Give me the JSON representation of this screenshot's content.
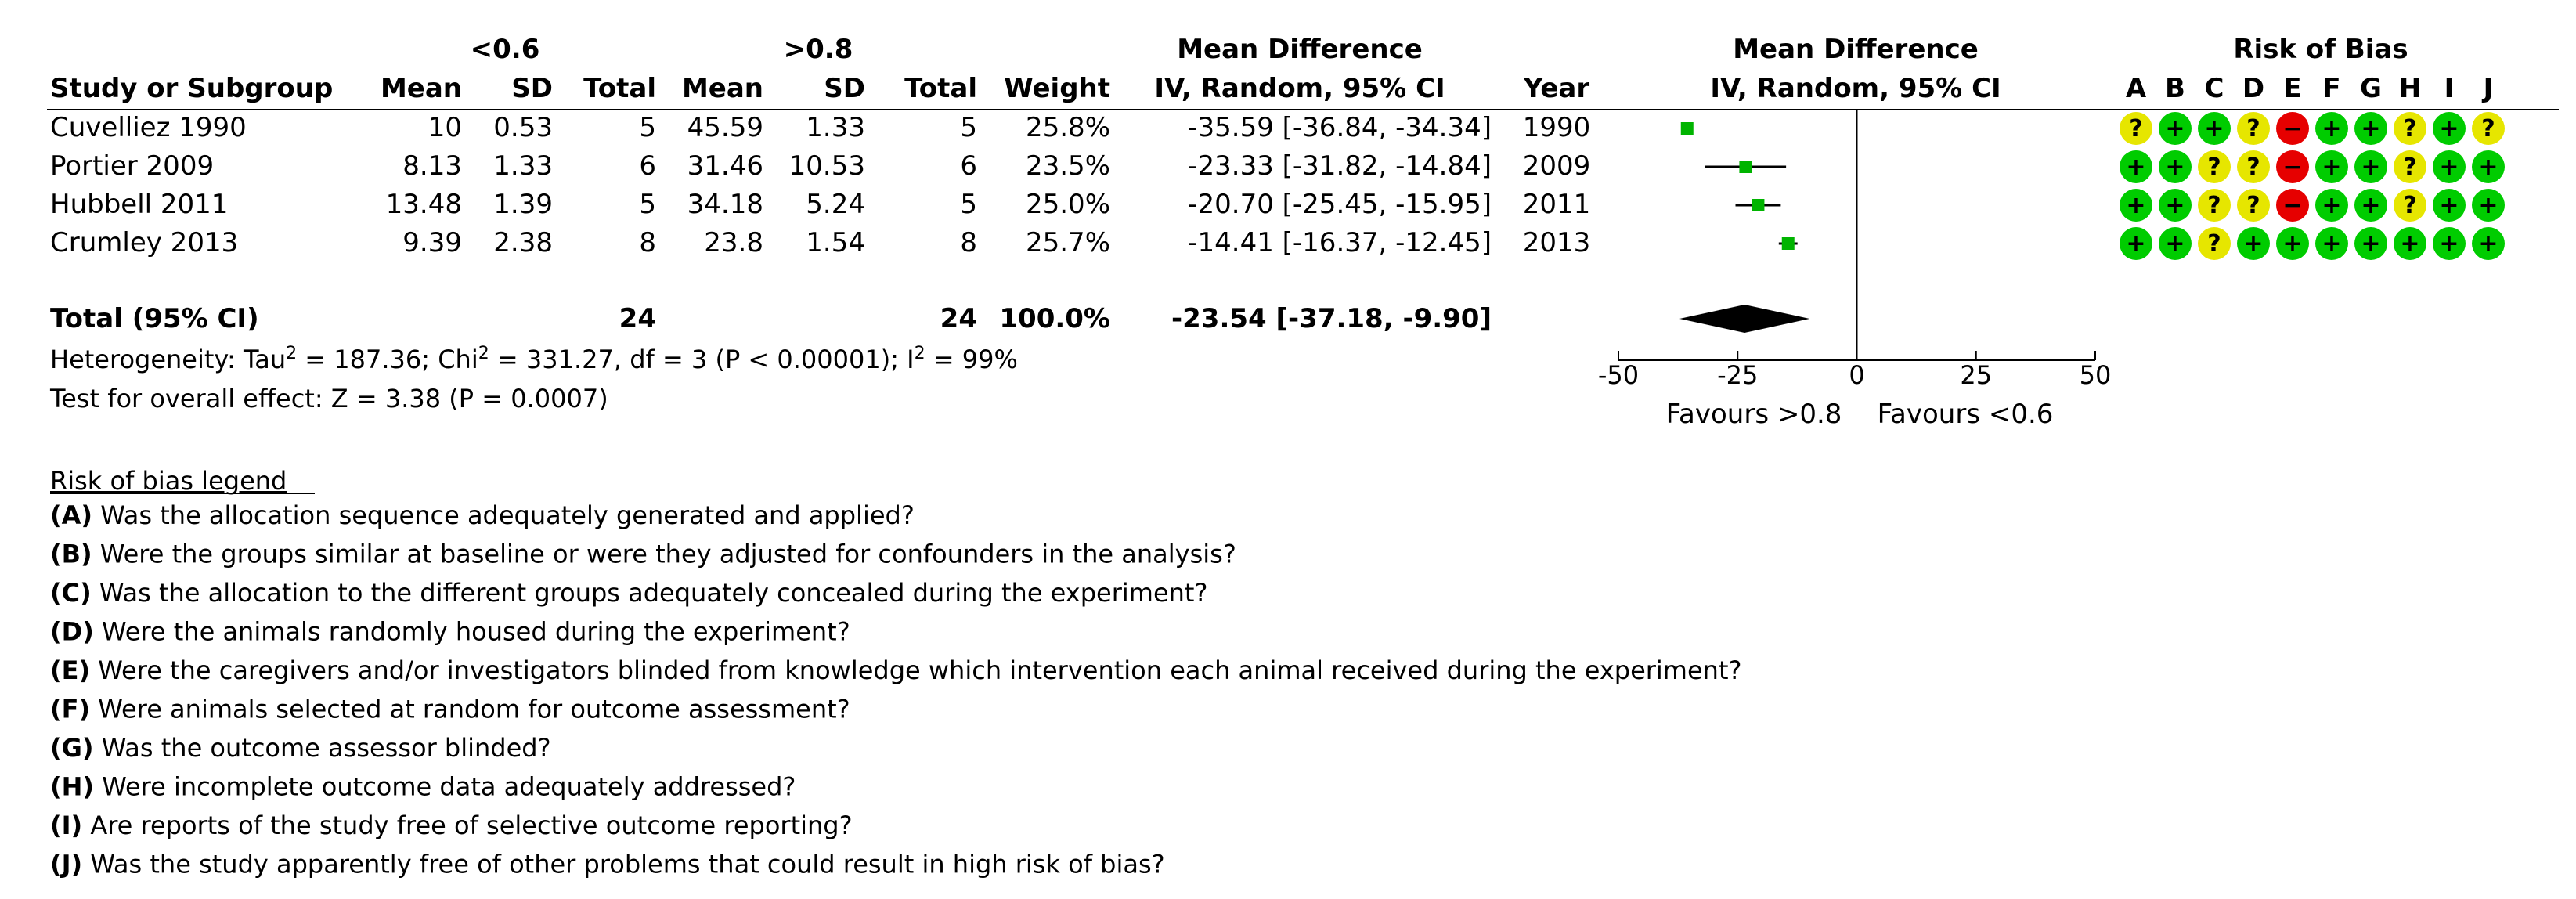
{
  "headers": {
    "group1": "<0.6",
    "group2": ">0.8",
    "study": "Study or Subgroup",
    "mean": "Mean",
    "sd": "SD",
    "total": "Total",
    "weight": "Weight",
    "md_title": "Mean Difference",
    "md_method": "IV, Random, 95% CI",
    "year": "Year",
    "plot_title": "Mean Difference",
    "plot_method": "IV, Random, 95% CI",
    "rob_title": "Risk of Bias",
    "rob_letters": [
      "A",
      "B",
      "C",
      "D",
      "E",
      "F",
      "G",
      "H",
      "I",
      "J"
    ]
  },
  "studies": [
    {
      "name": "Cuvelliez 1990",
      "m1": "10",
      "sd1": "0.53",
      "n1": "5",
      "m2": "45.59",
      "sd2": "1.33",
      "n2": "5",
      "weight": "25.8%",
      "ci": "-35.59 [-36.84, -34.34]",
      "year": "1990",
      "rob": [
        "?",
        "+",
        "+",
        "?",
        "-",
        "+",
        "+",
        "?",
        "+",
        "?"
      ]
    },
    {
      "name": "Portier 2009",
      "m1": "8.13",
      "sd1": "1.33",
      "n1": "6",
      "m2": "31.46",
      "sd2": "10.53",
      "n2": "6",
      "weight": "23.5%",
      "ci": "-23.33 [-31.82, -14.84]",
      "year": "2009",
      "rob": [
        "+",
        "+",
        "?",
        "?",
        "-",
        "+",
        "+",
        "?",
        "+",
        "+"
      ]
    },
    {
      "name": "Hubbell 2011",
      "m1": "13.48",
      "sd1": "1.39",
      "n1": "5",
      "m2": "34.18",
      "sd2": "5.24",
      "n2": "5",
      "weight": "25.0%",
      "ci": "-20.70 [-25.45, -15.95]",
      "year": "2011",
      "rob": [
        "+",
        "+",
        "?",
        "?",
        "-",
        "+",
        "+",
        "?",
        "+",
        "+"
      ]
    },
    {
      "name": "Crumley 2013",
      "m1": "9.39",
      "sd1": "2.38",
      "n1": "8",
      "m2": "23.8",
      "sd2": "1.54",
      "n2": "8",
      "weight": "25.7%",
      "ci": "-14.41 [-16.37, -12.45]",
      "year": "2013",
      "rob": [
        "+",
        "+",
        "?",
        "+",
        "+",
        "+",
        "+",
        "+",
        "+",
        "+"
      ]
    }
  ],
  "total": {
    "label": "Total (95% CI)",
    "n1": "24",
    "n2": "24",
    "weight": "100.0%",
    "ci": "-23.54 [-37.18, -9.90]"
  },
  "heterogeneity": {
    "prefix": "Heterogeneity: Tau",
    "tau_sup": "2",
    "tau_val": " = 187.36; Chi",
    "chi_sup": "2",
    "chi_val": " = 331.27, df = 3 (P < 0.00001); I",
    "i_sup": "2",
    "i_val": " = 99%"
  },
  "overall_effect": "Test for overall effect: Z = 3.38 (P = 0.0007)",
  "axis": {
    "ticks": [
      "-50",
      "-25",
      "0",
      "25",
      "50"
    ],
    "favours_left": "Favours >0.8",
    "favours_right": "Favours <0.6"
  },
  "chart_data": {
    "type": "scatter",
    "title": "Mean Difference",
    "subtitle": "IV, Random, 95% CI",
    "xlim": [
      -50,
      50
    ],
    "x_ticks": [
      -50,
      -25,
      0,
      25,
      50
    ],
    "points": [
      {
        "study": "Cuvelliez 1990",
        "md": -35.59,
        "lower": -36.84,
        "upper": -34.34,
        "weight": 25.8
      },
      {
        "study": "Portier 2009",
        "md": -23.33,
        "lower": -31.82,
        "upper": -14.84,
        "weight": 23.5
      },
      {
        "study": "Hubbell 2011",
        "md": -20.7,
        "lower": -25.45,
        "upper": -15.95,
        "weight": 25.0
      },
      {
        "study": "Crumley 2013",
        "md": -14.41,
        "lower": -16.37,
        "upper": -12.45,
        "weight": 25.7
      }
    ],
    "pooled": {
      "md": -23.54,
      "lower": -37.18,
      "upper": -9.9
    },
    "colors": {
      "square": "#00b400",
      "diamond": "#000000",
      "low_risk": "#00cc00",
      "unclear_risk": "#e6e600",
      "high_risk": "#e60000"
    }
  },
  "legend": {
    "title": "Risk of bias legend",
    "items": [
      {
        "key": "(A)",
        "text": " Was the allocation sequence adequately generated and applied?"
      },
      {
        "key": "(B)",
        "text": " Were the groups similar at baseline or were they adjusted for confounders in the analysis?"
      },
      {
        "key": "(C)",
        "text": " Was the allocation to the different groups adequately concealed during the experiment?"
      },
      {
        "key": "(D)",
        "text": " Were the animals randomly housed during the experiment?"
      },
      {
        "key": "(E)",
        "text": " Were the caregivers and/or investigators blinded from knowledge which intervention each animal received during the experiment?"
      },
      {
        "key": "(F)",
        "text": " Were animals selected at random for outcome assessment?"
      },
      {
        "key": "(G)",
        "text": " Was the outcome assessor blinded?"
      },
      {
        "key": "(H)",
        "text": " Were incomplete outcome data adequately addressed?"
      },
      {
        "key": "(I)",
        "text": " Are reports of the study free of selective outcome reporting?"
      },
      {
        "key": "(J)",
        "text": " Was the study apparently free of other problems that could result in high risk of bias?"
      }
    ]
  }
}
